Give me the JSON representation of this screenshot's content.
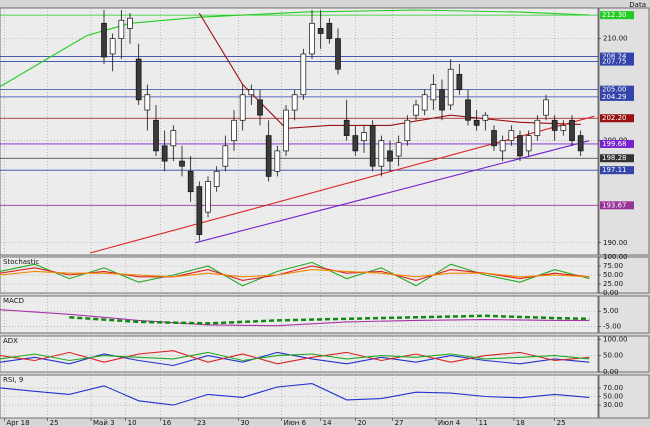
{
  "chart_data": [
    {
      "type": "candlestick",
      "title": "Data",
      "xlim": [
        0,
        69
      ],
      "ylim": [
        188.8,
        213.0
      ],
      "yticks": [
        {
          "value": 190,
          "label": "190.00"
        },
        {
          "value": 200,
          "label": "200.00"
        },
        {
          "value": 210,
          "label": "210.00"
        }
      ],
      "grid": true,
      "x": [
        12,
        13,
        14,
        15,
        16,
        17,
        18,
        19,
        20,
        21,
        22,
        23,
        24,
        25,
        26,
        27,
        28,
        29,
        30,
        31,
        32,
        33,
        34,
        35,
        36,
        37,
        38,
        39,
        40,
        41,
        42,
        43,
        44,
        45,
        46,
        47,
        48,
        49,
        50,
        51,
        52,
        53,
        54,
        55,
        56,
        57,
        58,
        59,
        60,
        61,
        62,
        63,
        64,
        65,
        66,
        67
      ],
      "open": [
        211.5,
        208.5,
        210.0,
        211.0,
        208.0,
        203.0,
        202.0,
        199.5,
        199.5,
        198.0,
        197.0,
        195.5,
        193.0,
        195.5,
        197.5,
        200.0,
        202.0,
        204.5,
        204.0,
        200.5,
        197.0,
        199.0,
        203.0,
        204.5,
        208.5,
        211.0,
        211.5,
        210.0,
        202.0,
        200.5,
        200.0,
        201.5,
        197.5,
        199.0,
        198.5,
        200.0,
        202.5,
        203.0,
        204.0,
        205.0,
        203.5,
        206.5,
        204.0,
        202.0,
        202.0,
        201.0,
        199.0,
        200.0,
        200.5,
        199.0,
        200.5,
        202.5,
        202.0,
        201.0,
        202.0,
        200.5
      ],
      "high": [
        212.8,
        210.5,
        212.8,
        212.5,
        209.5,
        205.5,
        203.5,
        201.0,
        201.5,
        199.5,
        198.5,
        196.0,
        196.5,
        197.5,
        200.5,
        203.0,
        205.5,
        205.5,
        205.0,
        202.0,
        199.5,
        203.5,
        205.0,
        209.0,
        212.8,
        212.8,
        212.0,
        211.0,
        204.0,
        201.5,
        201.5,
        202.0,
        200.5,
        200.0,
        200.5,
        202.5,
        204.0,
        205.0,
        206.5,
        206.0,
        208.0,
        207.5,
        205.0,
        203.0,
        202.8,
        201.5,
        200.5,
        201.5,
        201.0,
        201.0,
        202.5,
        204.5,
        202.5,
        202.0,
        202.5,
        201.0
      ],
      "low": [
        207.5,
        206.8,
        208.0,
        209.5,
        203.5,
        201.0,
        198.5,
        197.0,
        198.0,
        196.5,
        194.0,
        190.2,
        192.5,
        195.0,
        197.0,
        199.0,
        201.0,
        203.5,
        201.5,
        196.0,
        196.5,
        198.5,
        202.0,
        204.0,
        208.0,
        209.0,
        209.5,
        206.5,
        200.0,
        198.5,
        198.8,
        197.0,
        196.5,
        197.0,
        197.5,
        199.5,
        202.0,
        202.5,
        203.0,
        202.0,
        203.0,
        204.5,
        201.5,
        201.0,
        201.0,
        199.0,
        198.0,
        199.5,
        198.0,
        198.5,
        200.0,
        202.0,
        200.0,
        200.5,
        199.5,
        198.5
      ],
      "close": [
        208.2,
        210.0,
        211.8,
        212.0,
        204.0,
        204.5,
        199.0,
        198.0,
        201.0,
        197.5,
        195.0,
        190.8,
        196.0,
        197.0,
        199.5,
        202.0,
        204.5,
        205.0,
        202.5,
        196.5,
        199.0,
        203.0,
        204.5,
        208.5,
        211.5,
        210.5,
        210.0,
        207.0,
        200.5,
        199.0,
        200.8,
        197.5,
        200.0,
        198.0,
        199.8,
        202.0,
        203.5,
        204.5,
        205.5,
        203.0,
        207.0,
        205.0,
        202.0,
        201.5,
        202.5,
        199.5,
        200.0,
        201.0,
        198.5,
        200.5,
        202.0,
        204.0,
        201.0,
        201.5,
        200.0,
        199.0
      ],
      "series": [
        {
          "color": "#22cc22",
          "x": [
            0,
            6,
            10,
            15,
            23,
            35,
            48,
            60,
            68
          ],
          "values": [
            205.3,
            208.3,
            210.3,
            211.5,
            212.1,
            212.6,
            212.8,
            212.6,
            212.3
          ]
        },
        {
          "color": "#991111",
          "x": [
            23,
            28,
            33,
            38,
            45,
            52,
            60,
            67
          ],
          "values": [
            212.5,
            205.5,
            201.2,
            201.5,
            201.5,
            202.5,
            201.8,
            201.6
          ]
        },
        {
          "color": "#dd2222",
          "x": [
            10.4,
            68.6
          ],
          "values": [
            189.0,
            202.4
          ]
        },
        {
          "color": "#7722cc",
          "x": [
            22.5,
            68
          ],
          "values": [
            190.0,
            200.0
          ]
        }
      ],
      "levels": [
        {
          "value": 212.3,
          "label": "212.30",
          "color": "#22cc22"
        },
        {
          "value": 208.24,
          "label": "208.24",
          "color": "#3344aa"
        },
        {
          "value": 207.75,
          "label": "207.75",
          "color": "#3344aa"
        },
        {
          "value": 205.0,
          "label": "205.00",
          "color": "#3344aa"
        },
        {
          "value": 204.29,
          "label": "204.29",
          "color": "#3344aa"
        },
        {
          "value": 202.2,
          "label": "202.20",
          "color": "#991111"
        },
        {
          "value": 199.68,
          "label": "199.68",
          "color": "#7722cc"
        },
        {
          "value": 198.28,
          "label": "198.28",
          "color": "#333333"
        },
        {
          "value": 197.11,
          "label": "197.11",
          "color": "#3344aa"
        },
        {
          "value": 193.67,
          "label": "193.67",
          "color": "#993399"
        }
      ]
    },
    {
      "type": "line",
      "title": "Stochastic",
      "xlim": [
        0,
        69
      ],
      "ylim": [
        0,
        100
      ],
      "yticks": [
        {
          "value": 0,
          "label": "0.00"
        },
        {
          "value": 25,
          "label": "25.00"
        },
        {
          "value": 50,
          "label": "50.00"
        },
        {
          "value": 75,
          "label": "75.00"
        },
        {
          "value": 100,
          "label": "100.00"
        }
      ],
      "grid": true,
      "series": [
        {
          "color": "#22aa22",
          "x": [
            0,
            4,
            8,
            12,
            16,
            20,
            24,
            28,
            32,
            36,
            40,
            44,
            48,
            52,
            56,
            60,
            64,
            68
          ],
          "values": [
            60,
            80,
            40,
            70,
            30,
            50,
            75,
            20,
            60,
            85,
            40,
            70,
            20,
            80,
            50,
            30,
            65,
            40
          ]
        },
        {
          "color": "#dd2222",
          "x": [
            0,
            4,
            8,
            12,
            16,
            20,
            24,
            28,
            32,
            36,
            40,
            44,
            48,
            52,
            56,
            60,
            64,
            68
          ],
          "values": [
            55,
            70,
            50,
            60,
            45,
            45,
            65,
            35,
            50,
            75,
            55,
            60,
            35,
            65,
            55,
            40,
            55,
            45
          ]
        },
        {
          "color": "#ee8800",
          "x": [
            0,
            4,
            8,
            12,
            16,
            20,
            24,
            28,
            32,
            36,
            40,
            44,
            48,
            52,
            56,
            60,
            64,
            68
          ],
          "values": [
            50,
            60,
            55,
            55,
            50,
            45,
            55,
            45,
            50,
            65,
            60,
            55,
            45,
            55,
            55,
            45,
            50,
            45
          ]
        }
      ]
    },
    {
      "type": "line",
      "title": "MACD",
      "xlim": [
        0,
        69
      ],
      "ylim": [
        -9.3,
        15
      ],
      "yticks": [
        {
          "value": -5,
          "label": "-5.00"
        },
        {
          "value": 5,
          "label": "5.00"
        }
      ],
      "grid": true,
      "series": [
        {
          "color": "#aa33aa",
          "x": [
            0,
            8,
            16,
            24,
            32,
            40,
            48,
            56,
            64,
            68
          ],
          "values": [
            6,
            3,
            -1,
            -4,
            -4.5,
            -2,
            -1,
            -0.5,
            -1,
            -1
          ]
        },
        {
          "color": "#118811",
          "dash": true,
          "x": [
            8,
            16,
            24,
            32,
            40,
            48,
            56,
            64,
            68
          ],
          "values": [
            1,
            -2,
            -3,
            -1,
            0,
            1,
            2,
            0.5,
            0
          ]
        }
      ]
    },
    {
      "type": "line",
      "title": "ADX",
      "xlim": [
        0,
        69
      ],
      "ylim": [
        0,
        110
      ],
      "yticks": [
        {
          "value": 0,
          "label": "0.00"
        },
        {
          "value": 50,
          "label": "50.00"
        },
        {
          "value": 100,
          "label": "100.00"
        }
      ],
      "grid": true,
      "series": [
        {
          "color": "#2233cc",
          "x": [
            0,
            4,
            8,
            12,
            16,
            20,
            24,
            28,
            32,
            36,
            40,
            44,
            48,
            52,
            56,
            60,
            64,
            68
          ],
          "values": [
            30,
            45,
            25,
            55,
            35,
            20,
            50,
            30,
            60,
            40,
            25,
            45,
            30,
            50,
            35,
            25,
            40,
            30
          ]
        },
        {
          "color": "#dd2222",
          "x": [
            0,
            4,
            8,
            12,
            16,
            20,
            24,
            28,
            32,
            36,
            40,
            44,
            48,
            52,
            56,
            60,
            64,
            68
          ],
          "values": [
            50,
            35,
            60,
            30,
            55,
            65,
            30,
            55,
            25,
            45,
            60,
            35,
            55,
            30,
            50,
            60,
            35,
            45
          ]
        },
        {
          "color": "#22aa22",
          "x": [
            0,
            4,
            8,
            12,
            16,
            20,
            24,
            28,
            32,
            36,
            40,
            44,
            48,
            52,
            56,
            60,
            64,
            68
          ],
          "values": [
            40,
            55,
            35,
            50,
            45,
            40,
            60,
            35,
            50,
            55,
            40,
            50,
            45,
            55,
            40,
            45,
            50,
            40
          ]
        }
      ]
    },
    {
      "type": "line",
      "title": "RSI, 9",
      "xlim": [
        0,
        69
      ],
      "ylim": [
        0,
        100
      ],
      "yticks": [
        {
          "value": 30,
          "label": "30.00"
        },
        {
          "value": 50,
          "label": "50.00"
        },
        {
          "value": 70,
          "label": "70.00"
        }
      ],
      "grid": true,
      "xticks": [
        {
          "value": 0.5,
          "label": "Apr 18"
        },
        {
          "value": 5.5,
          "label": "25"
        },
        {
          "value": 10.5,
          "label": "Май 3"
        },
        {
          "value": 14.5,
          "label": "10"
        },
        {
          "value": 18.5,
          "label": "16"
        },
        {
          "value": 22.5,
          "label": "23"
        },
        {
          "value": 27.5,
          "label": "30"
        },
        {
          "value": 32.5,
          "label": "Июн 6"
        },
        {
          "value": 37,
          "label": "14"
        },
        {
          "value": 41,
          "label": "20"
        },
        {
          "value": 45.3,
          "label": "27"
        },
        {
          "value": 50.3,
          "label": "Июл 4"
        },
        {
          "value": 55,
          "label": "11"
        },
        {
          "value": 59.3,
          "label": "18"
        },
        {
          "value": 64,
          "label": "25"
        }
      ],
      "series": [
        {
          "color": "#2233cc",
          "x": [
            0,
            4,
            8,
            12,
            16,
            20,
            24,
            28,
            32,
            36,
            40,
            44,
            48,
            52,
            56,
            60,
            64,
            68
          ],
          "values": [
            70,
            62,
            55,
            75,
            40,
            30,
            55,
            48,
            72,
            80,
            42,
            45,
            60,
            58,
            50,
            47,
            55,
            48
          ]
        }
      ]
    }
  ]
}
